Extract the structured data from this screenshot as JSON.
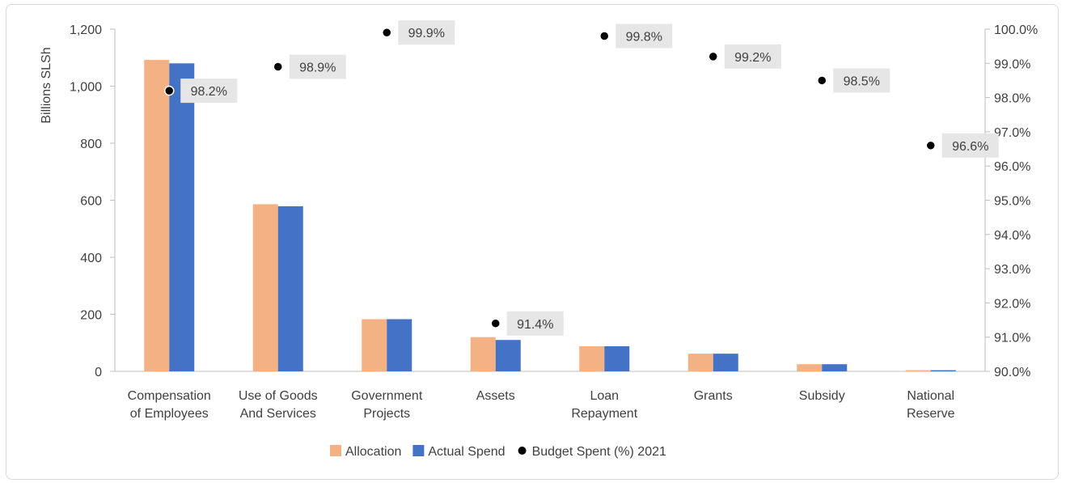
{
  "chart_data": {
    "type": "bar",
    "categories": [
      [
        "Compensation",
        "of Employees"
      ],
      [
        "Use of Goods",
        "And Services"
      ],
      [
        "Government",
        "Projects"
      ],
      [
        "Assets"
      ],
      [
        "Loan",
        "Repayment"
      ],
      [
        "Grants"
      ],
      [
        "Subsidy"
      ],
      [
        "National",
        "Reserve"
      ]
    ],
    "ylabel": "Billions SLSh",
    "ylim": [
      0,
      1200
    ],
    "yticks": [
      "0",
      "200",
      "400",
      "600",
      "800",
      "1,000",
      "1,200"
    ],
    "y2lim": [
      90,
      100
    ],
    "y2ticks": [
      "90.0%",
      "91.0%",
      "92.0%",
      "93.0%",
      "94.0%",
      "95.0%",
      "96.0%",
      "97.0%",
      "98.0%",
      "99.0%",
      "100.0%"
    ],
    "grid": false,
    "legend_position": "bottom",
    "series": [
      {
        "name": "Allocation",
        "axis": "left",
        "kind": "bar",
        "color": "#f4b183",
        "values": [
          1092,
          586,
          183,
          120,
          88,
          62,
          25,
          4
        ]
      },
      {
        "name": "Actual Spend",
        "axis": "left",
        "kind": "bar",
        "color": "#4472c4",
        "values": [
          1080,
          579,
          183,
          110,
          88,
          62,
          25,
          4
        ]
      },
      {
        "name": "Budget Spent (%) 2021",
        "axis": "right",
        "kind": "scatter",
        "color": "#000000",
        "values": [
          98.2,
          98.9,
          99.9,
          91.4,
          99.8,
          99.2,
          98.5,
          96.6
        ],
        "labels": [
          "98.2%",
          "98.9%",
          "99.9%",
          "91.4%",
          "99.8%",
          "99.2%",
          "98.5%",
          "96.6%"
        ]
      }
    ]
  }
}
